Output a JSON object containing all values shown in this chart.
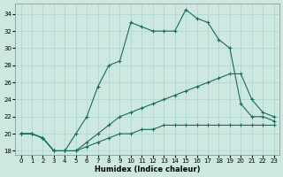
{
  "xlabel": "Humidex (Indice chaleur)",
  "background_color": "#cce8e0",
  "line_color": "#1a6b5a",
  "grid_color": "#aad4cc",
  "xlim": [
    -0.5,
    23.5
  ],
  "ylim": [
    17.5,
    35.2
  ],
  "xticks": [
    0,
    1,
    2,
    3,
    4,
    5,
    6,
    7,
    8,
    9,
    10,
    11,
    12,
    13,
    14,
    15,
    16,
    17,
    18,
    19,
    20,
    21,
    22,
    23
  ],
  "yticks": [
    18,
    20,
    22,
    24,
    26,
    28,
    30,
    32,
    34
  ],
  "line1_x": [
    0,
    1,
    2,
    3,
    4,
    5,
    6,
    7,
    8,
    9,
    10,
    11,
    12,
    13,
    14,
    15,
    16,
    17,
    18,
    19,
    20,
    21,
    22,
    23
  ],
  "line1_y": [
    20,
    20,
    19.5,
    18,
    18,
    18,
    18.5,
    19,
    19.5,
    20,
    20,
    20.5,
    20.5,
    21,
    21,
    21,
    21,
    21,
    21,
    21,
    21,
    21,
    21,
    21
  ],
  "line2_x": [
    0,
    1,
    2,
    3,
    4,
    5,
    6,
    7,
    8,
    9,
    10,
    11,
    12,
    13,
    14,
    15,
    16,
    17,
    18,
    19,
    20,
    21,
    22,
    23
  ],
  "line2_y": [
    20,
    20,
    19.5,
    18,
    18,
    18,
    19,
    20,
    21,
    22,
    22.5,
    23,
    23.5,
    24,
    24.5,
    25,
    25.5,
    26,
    26.5,
    27,
    27,
    24,
    22.5,
    22
  ],
  "line3_x": [
    0,
    1,
    2,
    3,
    4,
    5,
    6,
    7,
    8,
    9,
    10,
    11,
    12,
    13,
    14,
    15,
    16,
    17,
    18,
    19,
    20,
    21,
    22,
    23
  ],
  "line3_y": [
    20,
    20,
    19.5,
    18,
    18,
    20,
    22,
    25.5,
    28,
    28.5,
    33,
    32.5,
    32,
    32,
    32,
    34.5,
    33.5,
    33,
    31,
    30,
    23.5,
    22,
    22,
    21.5
  ]
}
